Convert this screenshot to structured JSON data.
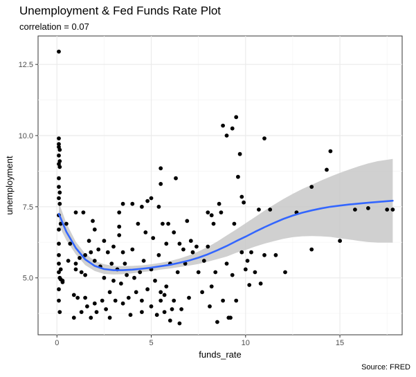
{
  "chart_data": {
    "type": "scatter",
    "title": "Unemployment & Fed Funds Rate Plot",
    "subtitle": "correlation = 0.07",
    "caption": "Source: FRED",
    "xlabel": "funds_rate",
    "ylabel": "unemployment",
    "xlim": [
      -1,
      18.3
    ],
    "ylim": [
      3.0,
      13.5
    ],
    "x_ticks": [
      0,
      5,
      10,
      15
    ],
    "y_ticks": [
      5.0,
      7.5,
      10.0,
      12.5
    ],
    "x_tick_labels": [
      "0",
      "5",
      "10",
      "15"
    ],
    "y_tick_labels": [
      "5.0",
      "7.5",
      "10.0",
      "12.5"
    ],
    "grid": true,
    "legend": "none",
    "colors": {
      "panel": "#ffffff",
      "grid_major": "#ebebeb",
      "grid_minor": "#f5f5f5",
      "points": "#000000",
      "smooth_line": "#3366ff",
      "ribbon": "#c8c8c8"
    },
    "points": [
      [
        0.1,
        12.95
      ],
      [
        0.1,
        9.9
      ],
      [
        0.1,
        9.7
      ],
      [
        0.1,
        9.6
      ],
      [
        0.15,
        9.5
      ],
      [
        0.1,
        9.3
      ],
      [
        0.15,
        9.1
      ],
      [
        0.1,
        9.0
      ],
      [
        0.15,
        8.9
      ],
      [
        0.1,
        8.5
      ],
      [
        0.1,
        8.2
      ],
      [
        0.15,
        8.0
      ],
      [
        0.1,
        7.8
      ],
      [
        0.15,
        7.6
      ],
      [
        0.1,
        7.2
      ],
      [
        0.1,
        6.7
      ],
      [
        0.1,
        6.2
      ],
      [
        0.1,
        5.8
      ],
      [
        0.1,
        5.5
      ],
      [
        0.1,
        5.2
      ],
      [
        0.15,
        5.0
      ],
      [
        0.1,
        4.6
      ],
      [
        0.1,
        4.2
      ],
      [
        0.15,
        3.8
      ],
      [
        0.2,
        6.9
      ],
      [
        0.2,
        4.95
      ],
      [
        0.3,
        4.9
      ],
      [
        0.3,
        4.85
      ],
      [
        0.2,
        5.3
      ],
      [
        0.5,
        6.9
      ],
      [
        0.7,
        6.2
      ],
      [
        0.6,
        5.6
      ],
      [
        0.9,
        4.4
      ],
      [
        0.9,
        3.6
      ],
      [
        1.0,
        7.3
      ],
      [
        1.0,
        5.5
      ],
      [
        1.0,
        5.3
      ],
      [
        1.1,
        4.3
      ],
      [
        1.2,
        5.7
      ],
      [
        1.3,
        5.2
      ],
      [
        1.3,
        3.8
      ],
      [
        1.4,
        7.3
      ],
      [
        1.5,
        5.8
      ],
      [
        1.5,
        5.1
      ],
      [
        1.5,
        4.3
      ],
      [
        1.6,
        4.0
      ],
      [
        1.7,
        6.3
      ],
      [
        1.8,
        3.6
      ],
      [
        1.8,
        5.9
      ],
      [
        1.9,
        7.0
      ],
      [
        2.0,
        6.7
      ],
      [
        2.0,
        5.6
      ],
      [
        2.0,
        4.1
      ],
      [
        2.1,
        3.8
      ],
      [
        2.2,
        6.0
      ],
      [
        2.3,
        5.4
      ],
      [
        2.4,
        4.2
      ],
      [
        2.5,
        6.3
      ],
      [
        2.5,
        5.0
      ],
      [
        2.6,
        3.9
      ],
      [
        2.7,
        5.9
      ],
      [
        2.8,
        4.5
      ],
      [
        2.8,
        3.6
      ],
      [
        2.9,
        5.5
      ],
      [
        3.0,
        6.1
      ],
      [
        3.0,
        4.9
      ],
      [
        3.1,
        4.2
      ],
      [
        3.2,
        5.3
      ],
      [
        3.3,
        7.3
      ],
      [
        3.3,
        6.8
      ],
      [
        3.3,
        6.5
      ],
      [
        3.4,
        4.8
      ],
      [
        3.5,
        7.6
      ],
      [
        3.5,
        4.1
      ],
      [
        3.5,
        5.9
      ],
      [
        3.6,
        5.5
      ],
      [
        3.7,
        5.1
      ],
      [
        3.8,
        4.3
      ],
      [
        3.9,
        3.7
      ],
      [
        4.0,
        7.6
      ],
      [
        4.0,
        6.0
      ],
      [
        4.1,
        5.0
      ],
      [
        4.2,
        4.5
      ],
      [
        4.3,
        6.9
      ],
      [
        4.4,
        5.2
      ],
      [
        4.5,
        7.5
      ],
      [
        4.5,
        4.2
      ],
      [
        4.5,
        3.8
      ],
      [
        4.6,
        5.6
      ],
      [
        4.7,
        6.6
      ],
      [
        4.8,
        7.7
      ],
      [
        4.8,
        4.6
      ],
      [
        5.0,
        7.8
      ],
      [
        5.0,
        5.3
      ],
      [
        5.0,
        4.0
      ],
      [
        5.1,
        6.4
      ],
      [
        5.2,
        4.9
      ],
      [
        5.3,
        3.7
      ],
      [
        5.4,
        7.5
      ],
      [
        5.4,
        5.8
      ],
      [
        5.5,
        8.85
      ],
      [
        5.5,
        8.3
      ],
      [
        5.5,
        4.5
      ],
      [
        5.5,
        4.2
      ],
      [
        5.6,
        6.9
      ],
      [
        5.7,
        4.4
      ],
      [
        5.7,
        3.8
      ],
      [
        5.8,
        6.2
      ],
      [
        5.8,
        4.7
      ],
      [
        5.9,
        6.9
      ],
      [
        6.0,
        5.5
      ],
      [
        6.0,
        3.5
      ],
      [
        6.1,
        3.9
      ],
      [
        6.2,
        6.6
      ],
      [
        6.2,
        4.2
      ],
      [
        6.3,
        8.5
      ],
      [
        6.4,
        5.2
      ],
      [
        6.5,
        6.2
      ],
      [
        6.5,
        3.4
      ],
      [
        6.6,
        3.9
      ],
      [
        6.7,
        6.0
      ],
      [
        6.8,
        5.5
      ],
      [
        6.9,
        7.0
      ],
      [
        7.0,
        4.3
      ],
      [
        7.1,
        6.3
      ],
      [
        7.2,
        5.9
      ],
      [
        7.4,
        6.1
      ],
      [
        7.5,
        5.2
      ],
      [
        7.7,
        4.5
      ],
      [
        7.8,
        5.6
      ],
      [
        8.0,
        7.3
      ],
      [
        8.0,
        6.1
      ],
      [
        8.1,
        4.0
      ],
      [
        8.2,
        7.2
      ],
      [
        8.2,
        4.7
      ],
      [
        8.3,
        6.9
      ],
      [
        8.4,
        5.2
      ],
      [
        8.5,
        3.45
      ],
      [
        8.6,
        7.6
      ],
      [
        8.7,
        7.3
      ],
      [
        8.8,
        10.35
      ],
      [
        8.8,
        4.2
      ],
      [
        9.0,
        10.0
      ],
      [
        9.0,
        5.5
      ],
      [
        9.1,
        3.6
      ],
      [
        9.2,
        3.6
      ],
      [
        9.3,
        10.25
      ],
      [
        9.3,
        5.1
      ],
      [
        9.4,
        6.9
      ],
      [
        9.5,
        10.65
      ],
      [
        9.5,
        4.2
      ],
      [
        9.6,
        8.55
      ],
      [
        9.7,
        9.35
      ],
      [
        9.8,
        7.85
      ],
      [
        9.8,
        5.9
      ],
      [
        9.9,
        7.65
      ],
      [
        10.0,
        5.3
      ],
      [
        10.1,
        5.6
      ],
      [
        10.2,
        4.75
      ],
      [
        10.3,
        5.9
      ],
      [
        10.5,
        5.2
      ],
      [
        10.7,
        7.4
      ],
      [
        10.8,
        4.8
      ],
      [
        11.0,
        9.9
      ],
      [
        11.0,
        5.8
      ],
      [
        11.3,
        7.4
      ],
      [
        11.6,
        5.8
      ],
      [
        12.1,
        5.2
      ],
      [
        12.7,
        7.3
      ],
      [
        13.5,
        8.2
      ],
      [
        13.5,
        6.0
      ],
      [
        14.3,
        8.8
      ],
      [
        14.5,
        9.45
      ],
      [
        15.0,
        6.3
      ],
      [
        15.8,
        7.4
      ],
      [
        16.5,
        7.45
      ],
      [
        17.5,
        7.4
      ],
      [
        17.8,
        7.4
      ]
    ],
    "smooth": [
      [
        0.1,
        7.25
      ],
      [
        0.5,
        6.62
      ],
      [
        1.0,
        6.05
      ],
      [
        1.5,
        5.65
      ],
      [
        2.0,
        5.42
      ],
      [
        2.5,
        5.31
      ],
      [
        3.0,
        5.27
      ],
      [
        3.5,
        5.27
      ],
      [
        4.0,
        5.29
      ],
      [
        4.5,
        5.32
      ],
      [
        5.0,
        5.36
      ],
      [
        5.5,
        5.41
      ],
      [
        6.0,
        5.46
      ],
      [
        6.5,
        5.53
      ],
      [
        7.0,
        5.61
      ],
      [
        7.5,
        5.71
      ],
      [
        8.0,
        5.83
      ],
      [
        8.5,
        5.97
      ],
      [
        9.0,
        6.12
      ],
      [
        9.5,
        6.29
      ],
      [
        10.0,
        6.45
      ],
      [
        10.5,
        6.62
      ],
      [
        11.0,
        6.78
      ],
      [
        11.5,
        6.93
      ],
      [
        12.0,
        7.07
      ],
      [
        12.5,
        7.19
      ],
      [
        13.0,
        7.29
      ],
      [
        13.5,
        7.37
      ],
      [
        14.0,
        7.44
      ],
      [
        14.5,
        7.5
      ],
      [
        15.0,
        7.54
      ],
      [
        15.5,
        7.58
      ],
      [
        16.0,
        7.61
      ],
      [
        16.5,
        7.64
      ],
      [
        17.0,
        7.67
      ],
      [
        17.8,
        7.71
      ]
    ],
    "band": [
      [
        0.1,
        7.65,
        6.85
      ],
      [
        0.5,
        6.92,
        6.32
      ],
      [
        1.0,
        6.27,
        5.83
      ],
      [
        1.5,
        5.85,
        5.45
      ],
      [
        2.0,
        5.6,
        5.24
      ],
      [
        2.5,
        5.48,
        5.14
      ],
      [
        3.0,
        5.42,
        5.12
      ],
      [
        3.5,
        5.41,
        5.13
      ],
      [
        4.0,
        5.42,
        5.16
      ],
      [
        4.5,
        5.44,
        5.2
      ],
      [
        5.0,
        5.48,
        5.24
      ],
      [
        5.5,
        5.53,
        5.29
      ],
      [
        6.0,
        5.59,
        5.33
      ],
      [
        6.5,
        5.68,
        5.38
      ],
      [
        7.0,
        5.79,
        5.43
      ],
      [
        7.5,
        5.93,
        5.49
      ],
      [
        8.0,
        6.09,
        5.57
      ],
      [
        8.5,
        6.28,
        5.66
      ],
      [
        9.0,
        6.49,
        5.75
      ],
      [
        9.5,
        6.7,
        5.88
      ],
      [
        10.0,
        6.92,
        5.98
      ],
      [
        10.5,
        7.14,
        6.1
      ],
      [
        11.0,
        7.36,
        6.2
      ],
      [
        11.5,
        7.57,
        6.29
      ],
      [
        12.0,
        7.77,
        6.37
      ],
      [
        12.5,
        7.95,
        6.43
      ],
      [
        13.0,
        8.12,
        6.46
      ],
      [
        13.5,
        8.27,
        6.47
      ],
      [
        14.0,
        8.42,
        6.46
      ],
      [
        14.5,
        8.56,
        6.44
      ],
      [
        15.0,
        8.69,
        6.39
      ],
      [
        15.5,
        8.81,
        6.35
      ],
      [
        16.0,
        8.92,
        6.3
      ],
      [
        16.5,
        9.02,
        6.26
      ],
      [
        17.0,
        9.1,
        6.24
      ],
      [
        17.8,
        9.18,
        6.24
      ]
    ]
  }
}
